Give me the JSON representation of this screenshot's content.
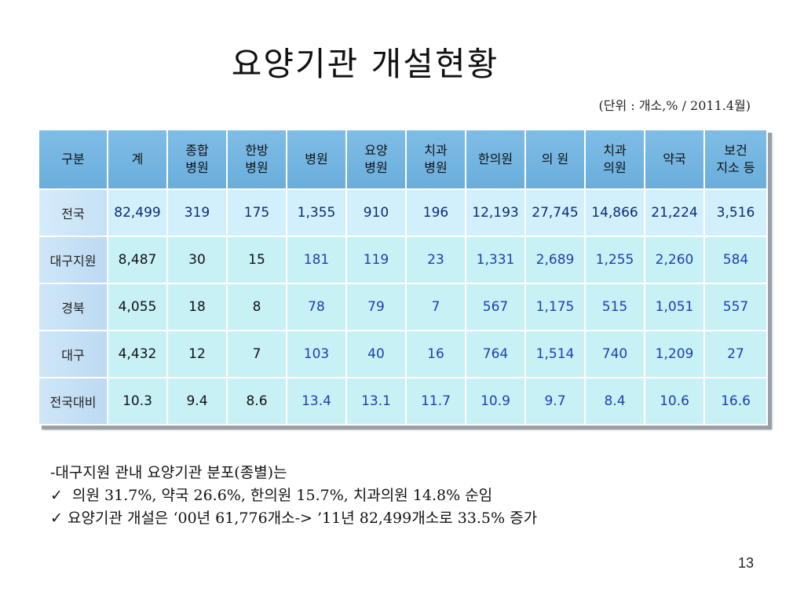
{
  "title": "요양기관 개설현황",
  "unit": "(단위 : 개소,% / 2011.4월)",
  "table": {
    "headers": [
      "구분",
      "계",
      "종합\n병원",
      "한방\n병원",
      "병원",
      "요양\n병원",
      "치과\n병원",
      "한의원",
      "의 원",
      "치과\n의원",
      "약국",
      "보건\n지소 등"
    ],
    "rows": [
      {
        "label": "전국",
        "values": [
          "82,499",
          "319",
          "175",
          "1,355",
          "910",
          "196",
          "12,193",
          "27,745",
          "14,866",
          "21,224",
          "3,516"
        ]
      },
      {
        "label": "대구지원",
        "values": [
          "8,487",
          "30",
          "15",
          "181",
          "119",
          "23",
          "1,331",
          "2,689",
          "1,255",
          "2,260",
          "584"
        ]
      },
      {
        "label": "경북",
        "values": [
          "4,055",
          "18",
          "8",
          "78",
          "79",
          "7",
          "567",
          "1,175",
          "515",
          "1,051",
          "557"
        ]
      },
      {
        "label": "대구",
        "values": [
          "4,432",
          "12",
          "7",
          "103",
          "40",
          "16",
          "764",
          "1,514",
          "740",
          "1,209",
          "27"
        ]
      },
      {
        "label": "전국대비",
        "values": [
          "10.3",
          "9.4",
          "8.6",
          "13.4",
          "13.1",
          "11.7",
          "10.9",
          "9.7",
          "8.4",
          "10.6",
          "16.6"
        ]
      }
    ]
  },
  "notes": {
    "line1": "-대구지원 관내 요양기관 분포(종별)는",
    "check": "✓",
    "line2": " 의원 31.7%, 약국 26.6%, 한의원 15.7%, 치과의원 14.8% 순임",
    "line3": "요양기관 개설은 ‘00년 61,776개소-> ’11년 82,499개소로 33.5% 증가"
  },
  "page_number": "13",
  "colors": {
    "header_bg": "#7fbde6",
    "cell_bg": "#c8f1f6",
    "blue_text": "#1c3fb4",
    "navy_text": "#0b2a7a"
  }
}
